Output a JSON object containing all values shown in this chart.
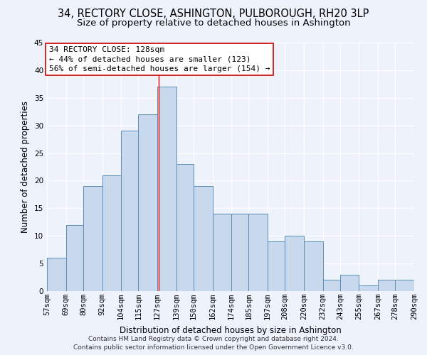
{
  "title": "34, RECTORY CLOSE, ASHINGTON, PULBOROUGH, RH20 3LP",
  "subtitle": "Size of property relative to detached houses in Ashington",
  "xlabel": "Distribution of detached houses by size in Ashington",
  "ylabel": "Number of detached properties",
  "bin_labels": [
    "57sqm",
    "69sqm",
    "80sqm",
    "92sqm",
    "104sqm",
    "115sqm",
    "127sqm",
    "139sqm",
    "150sqm",
    "162sqm",
    "174sqm",
    "185sqm",
    "197sqm",
    "208sqm",
    "220sqm",
    "232sqm",
    "243sqm",
    "255sqm",
    "267sqm",
    "278sqm",
    "290sqm"
  ],
  "bin_edges": [
    57,
    69,
    80,
    92,
    104,
    115,
    127,
    139,
    150,
    162,
    174,
    185,
    197,
    208,
    220,
    232,
    243,
    255,
    267,
    278,
    290
  ],
  "bar_heights": [
    6,
    12,
    19,
    21,
    29,
    32,
    37,
    23,
    19,
    14,
    14,
    14,
    9,
    10,
    9,
    2,
    3,
    1,
    2,
    2
  ],
  "bar_color": "#c9d9ed",
  "bar_edge_color": "#5b8db8",
  "background_color": "#eef2fb",
  "grid_color": "#ffffff",
  "red_line_x": 128,
  "annotation_line1": "34 RECTORY CLOSE: 128sqm",
  "annotation_line2": "← 44% of detached houses are smaller (123)",
  "annotation_line3": "56% of semi-detached houses are larger (154) →",
  "annotation_box_color": "#ffffff",
  "annotation_box_edge_color": "#cc0000",
  "ylim": [
    0,
    45
  ],
  "yticks": [
    0,
    5,
    10,
    15,
    20,
    25,
    30,
    35,
    40,
    45
  ],
  "footer_line1": "Contains HM Land Registry data © Crown copyright and database right 2024.",
  "footer_line2": "Contains public sector information licensed under the Open Government Licence v3.0.",
  "title_fontsize": 10.5,
  "subtitle_fontsize": 9.5,
  "xlabel_fontsize": 8.5,
  "ylabel_fontsize": 8.5,
  "tick_fontsize": 7.5,
  "annotation_fontsize": 8,
  "footer_fontsize": 6.5
}
